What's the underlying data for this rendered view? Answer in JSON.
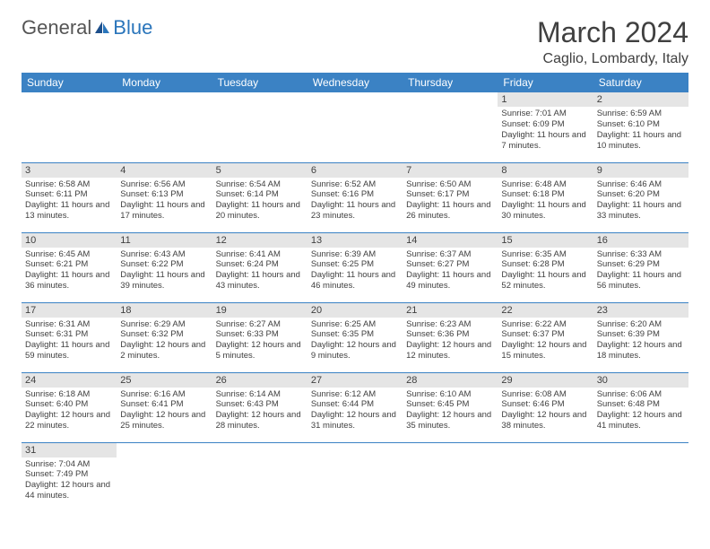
{
  "logo": {
    "general": "General",
    "blue": "Blue"
  },
  "title": "March 2024",
  "location": "Caglio, Lombardy, Italy",
  "colors": {
    "header_bg": "#3b82c4",
    "header_text": "#ffffff",
    "daynum_bg": "#e5e5e5",
    "text": "#404040",
    "row_border": "#3b82c4",
    "logo_accent": "#2a75bb"
  },
  "day_headers": [
    "Sunday",
    "Monday",
    "Tuesday",
    "Wednesday",
    "Thursday",
    "Friday",
    "Saturday"
  ],
  "weeks": [
    [
      {
        "n": "",
        "lines": []
      },
      {
        "n": "",
        "lines": []
      },
      {
        "n": "",
        "lines": []
      },
      {
        "n": "",
        "lines": []
      },
      {
        "n": "",
        "lines": []
      },
      {
        "n": "1",
        "lines": [
          "Sunrise: 7:01 AM",
          "Sunset: 6:09 PM",
          "Daylight: 11 hours and 7 minutes."
        ]
      },
      {
        "n": "2",
        "lines": [
          "Sunrise: 6:59 AM",
          "Sunset: 6:10 PM",
          "Daylight: 11 hours and 10 minutes."
        ]
      }
    ],
    [
      {
        "n": "3",
        "lines": [
          "Sunrise: 6:58 AM",
          "Sunset: 6:11 PM",
          "Daylight: 11 hours and 13 minutes."
        ]
      },
      {
        "n": "4",
        "lines": [
          "Sunrise: 6:56 AM",
          "Sunset: 6:13 PM",
          "Daylight: 11 hours and 17 minutes."
        ]
      },
      {
        "n": "5",
        "lines": [
          "Sunrise: 6:54 AM",
          "Sunset: 6:14 PM",
          "Daylight: 11 hours and 20 minutes."
        ]
      },
      {
        "n": "6",
        "lines": [
          "Sunrise: 6:52 AM",
          "Sunset: 6:16 PM",
          "Daylight: 11 hours and 23 minutes."
        ]
      },
      {
        "n": "7",
        "lines": [
          "Sunrise: 6:50 AM",
          "Sunset: 6:17 PM",
          "Daylight: 11 hours and 26 minutes."
        ]
      },
      {
        "n": "8",
        "lines": [
          "Sunrise: 6:48 AM",
          "Sunset: 6:18 PM",
          "Daylight: 11 hours and 30 minutes."
        ]
      },
      {
        "n": "9",
        "lines": [
          "Sunrise: 6:46 AM",
          "Sunset: 6:20 PM",
          "Daylight: 11 hours and 33 minutes."
        ]
      }
    ],
    [
      {
        "n": "10",
        "lines": [
          "Sunrise: 6:45 AM",
          "Sunset: 6:21 PM",
          "Daylight: 11 hours and 36 minutes."
        ]
      },
      {
        "n": "11",
        "lines": [
          "Sunrise: 6:43 AM",
          "Sunset: 6:22 PM",
          "Daylight: 11 hours and 39 minutes."
        ]
      },
      {
        "n": "12",
        "lines": [
          "Sunrise: 6:41 AM",
          "Sunset: 6:24 PM",
          "Daylight: 11 hours and 43 minutes."
        ]
      },
      {
        "n": "13",
        "lines": [
          "Sunrise: 6:39 AM",
          "Sunset: 6:25 PM",
          "Daylight: 11 hours and 46 minutes."
        ]
      },
      {
        "n": "14",
        "lines": [
          "Sunrise: 6:37 AM",
          "Sunset: 6:27 PM",
          "Daylight: 11 hours and 49 minutes."
        ]
      },
      {
        "n": "15",
        "lines": [
          "Sunrise: 6:35 AM",
          "Sunset: 6:28 PM",
          "Daylight: 11 hours and 52 minutes."
        ]
      },
      {
        "n": "16",
        "lines": [
          "Sunrise: 6:33 AM",
          "Sunset: 6:29 PM",
          "Daylight: 11 hours and 56 minutes."
        ]
      }
    ],
    [
      {
        "n": "17",
        "lines": [
          "Sunrise: 6:31 AM",
          "Sunset: 6:31 PM",
          "Daylight: 11 hours and 59 minutes."
        ]
      },
      {
        "n": "18",
        "lines": [
          "Sunrise: 6:29 AM",
          "Sunset: 6:32 PM",
          "Daylight: 12 hours and 2 minutes."
        ]
      },
      {
        "n": "19",
        "lines": [
          "Sunrise: 6:27 AM",
          "Sunset: 6:33 PM",
          "Daylight: 12 hours and 5 minutes."
        ]
      },
      {
        "n": "20",
        "lines": [
          "Sunrise: 6:25 AM",
          "Sunset: 6:35 PM",
          "Daylight: 12 hours and 9 minutes."
        ]
      },
      {
        "n": "21",
        "lines": [
          "Sunrise: 6:23 AM",
          "Sunset: 6:36 PM",
          "Daylight: 12 hours and 12 minutes."
        ]
      },
      {
        "n": "22",
        "lines": [
          "Sunrise: 6:22 AM",
          "Sunset: 6:37 PM",
          "Daylight: 12 hours and 15 minutes."
        ]
      },
      {
        "n": "23",
        "lines": [
          "Sunrise: 6:20 AM",
          "Sunset: 6:39 PM",
          "Daylight: 12 hours and 18 minutes."
        ]
      }
    ],
    [
      {
        "n": "24",
        "lines": [
          "Sunrise: 6:18 AM",
          "Sunset: 6:40 PM",
          "Daylight: 12 hours and 22 minutes."
        ]
      },
      {
        "n": "25",
        "lines": [
          "Sunrise: 6:16 AM",
          "Sunset: 6:41 PM",
          "Daylight: 12 hours and 25 minutes."
        ]
      },
      {
        "n": "26",
        "lines": [
          "Sunrise: 6:14 AM",
          "Sunset: 6:43 PM",
          "Daylight: 12 hours and 28 minutes."
        ]
      },
      {
        "n": "27",
        "lines": [
          "Sunrise: 6:12 AM",
          "Sunset: 6:44 PM",
          "Daylight: 12 hours and 31 minutes."
        ]
      },
      {
        "n": "28",
        "lines": [
          "Sunrise: 6:10 AM",
          "Sunset: 6:45 PM",
          "Daylight: 12 hours and 35 minutes."
        ]
      },
      {
        "n": "29",
        "lines": [
          "Sunrise: 6:08 AM",
          "Sunset: 6:46 PM",
          "Daylight: 12 hours and 38 minutes."
        ]
      },
      {
        "n": "30",
        "lines": [
          "Sunrise: 6:06 AM",
          "Sunset: 6:48 PM",
          "Daylight: 12 hours and 41 minutes."
        ]
      }
    ],
    [
      {
        "n": "31",
        "lines": [
          "Sunrise: 7:04 AM",
          "Sunset: 7:49 PM",
          "Daylight: 12 hours and 44 minutes."
        ]
      },
      {
        "n": "",
        "lines": []
      },
      {
        "n": "",
        "lines": []
      },
      {
        "n": "",
        "lines": []
      },
      {
        "n": "",
        "lines": []
      },
      {
        "n": "",
        "lines": []
      },
      {
        "n": "",
        "lines": []
      }
    ]
  ]
}
